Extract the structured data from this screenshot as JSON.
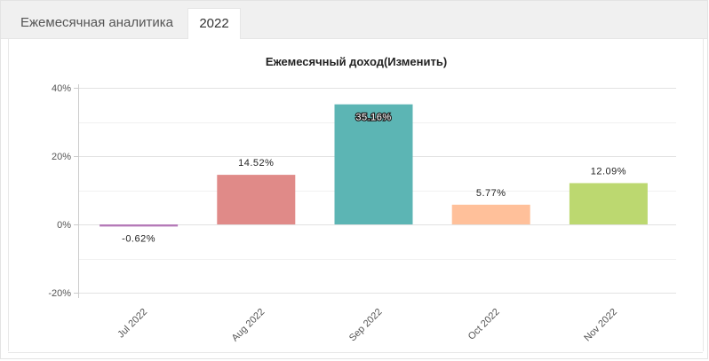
{
  "tabs": [
    {
      "label": "Ежемесячная аналитика",
      "active": false
    },
    {
      "label": "2022",
      "active": true
    }
  ],
  "chart_data": {
    "type": "bar",
    "title": "Ежемесячный доход(Изменить)",
    "categories": [
      "Jul 2022",
      "Aug 2022",
      "Sep 2022",
      "Oct 2022",
      "Nov 2022"
    ],
    "values": [
      -0.62,
      14.52,
      35.16,
      5.77,
      12.09
    ],
    "data_labels": [
      "-0.62%",
      "14.52%",
      "35.16%",
      "5.77%",
      "12.09%"
    ],
    "colors": [
      "#b57ab8",
      "#e08a88",
      "#5cb5b4",
      "#ffc09a",
      "#bcd870"
    ],
    "ylim": [
      -20,
      40
    ],
    "yticks": [
      40,
      20,
      0,
      -20
    ],
    "ytick_labels": [
      "40%",
      "20%",
      "0%",
      "-20%"
    ],
    "grid": true,
    "legend": "none"
  }
}
